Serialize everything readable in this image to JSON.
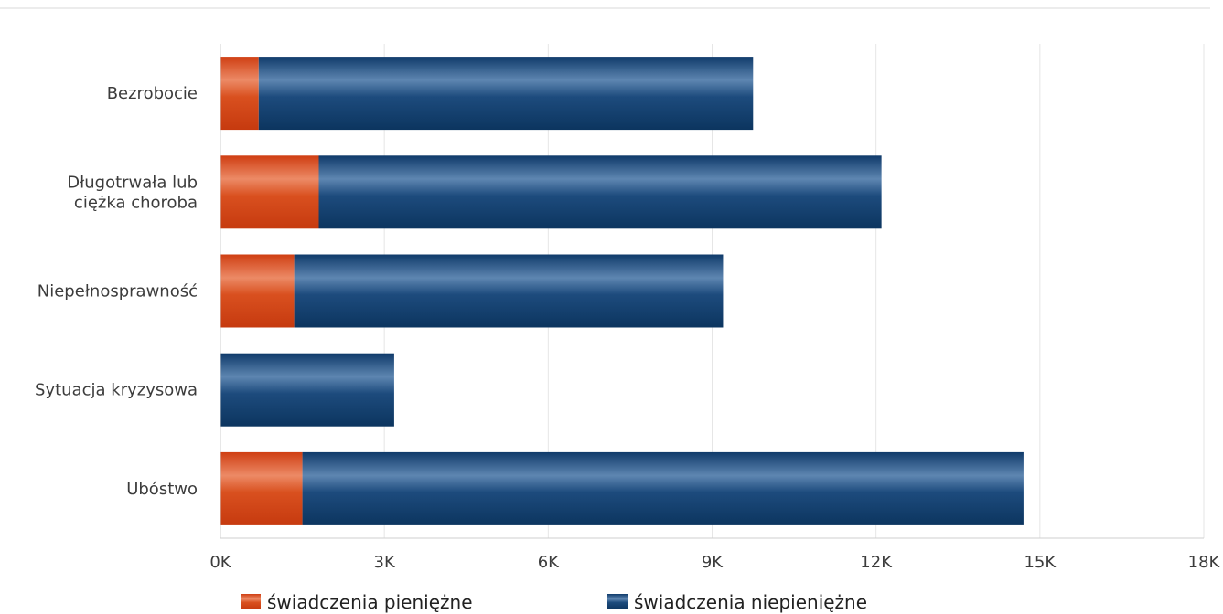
{
  "chart_data": {
    "type": "bar",
    "orientation": "horizontal",
    "stacked": true,
    "categories": [
      [
        "Bezrobocie"
      ],
      [
        "Długotrwała lub",
        "ciężka choroba"
      ],
      [
        "Niepełnosprawność"
      ],
      [
        "Sytuacja kryzysowa"
      ],
      [
        "Ubóstwo"
      ]
    ],
    "series": [
      {
        "name": "świadczenia pieniężne",
        "color": "#d0441a",
        "values": [
          700,
          1800,
          1350,
          0,
          1500
        ]
      },
      {
        "name": "świadczenia niepieniężne",
        "color": "#0f3d6e",
        "values": [
          9050,
          10300,
          7850,
          3180,
          13200
        ]
      }
    ],
    "xlim": [
      0,
      18000
    ],
    "xticks": [
      0,
      3000,
      6000,
      9000,
      12000,
      15000,
      18000
    ],
    "xtick_labels": [
      "0K",
      "3K",
      "6K",
      "9K",
      "12K",
      "15K",
      "18K"
    ],
    "grid": true,
    "legend": "bottom"
  }
}
